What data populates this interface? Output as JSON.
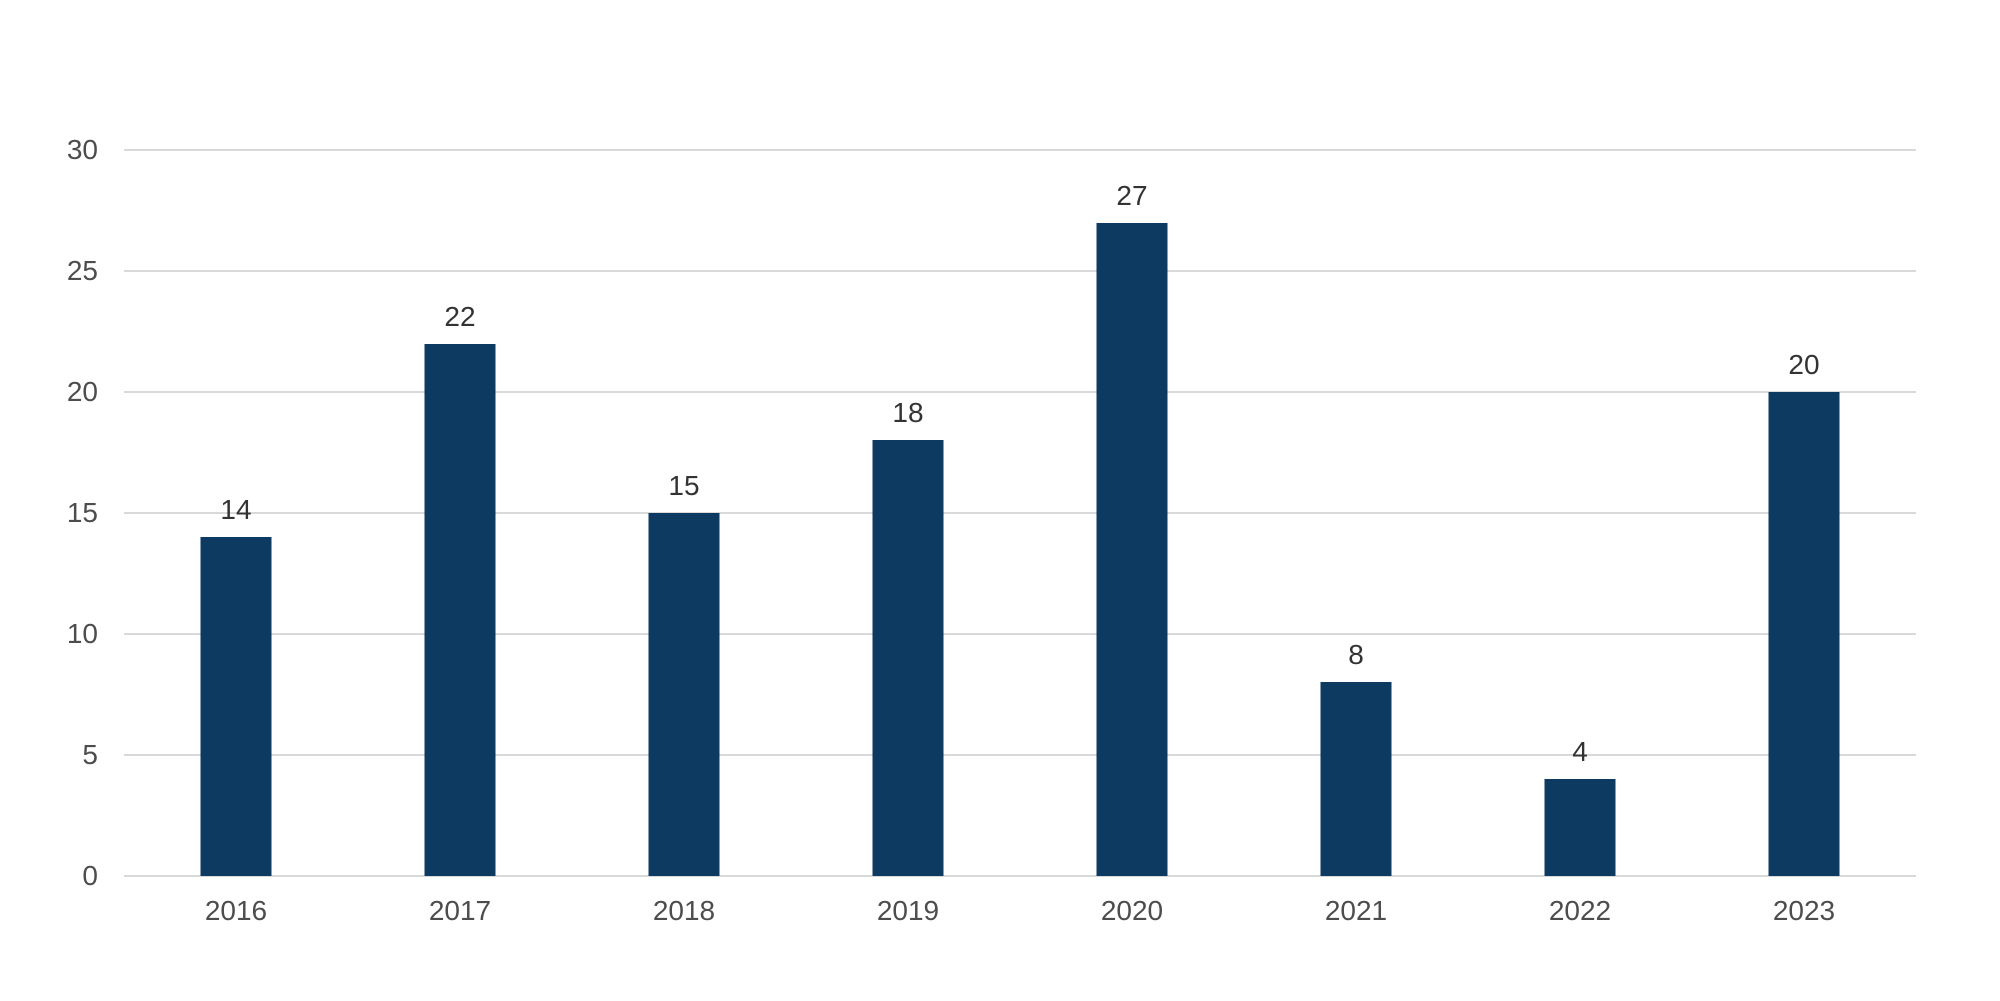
{
  "chart_data": {
    "type": "bar",
    "title": "",
    "xlabel": "",
    "ylabel": "",
    "categories": [
      "2016",
      "2017",
      "2018",
      "2019",
      "2020",
      "2021",
      "2022",
      "2023"
    ],
    "values": [
      14,
      22,
      15,
      18,
      27,
      8,
      4,
      20
    ],
    "value_labels": [
      "14",
      "22",
      "15",
      "18",
      "27",
      "8",
      "4",
      "20"
    ],
    "ylim": [
      0,
      30
    ],
    "yticks": [
      0,
      5,
      10,
      15,
      20,
      25,
      30
    ],
    "ytick_labels": [
      "0",
      "5",
      "10",
      "15",
      "20",
      "25",
      "30"
    ],
    "grid": true,
    "legend": false,
    "colors": {
      "bar": "#0c3a60",
      "gridline": "#d9d9d9",
      "axis_tick_text": "#4d4d4d",
      "value_label_text": "#333333",
      "background": "#ffffff"
    }
  }
}
